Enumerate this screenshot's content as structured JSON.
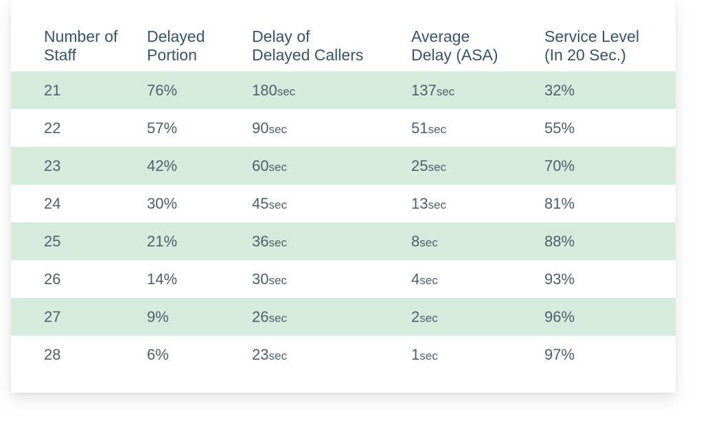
{
  "headers": [
    [
      "Number of",
      "Staff"
    ],
    [
      "Delayed",
      "Portion"
    ],
    [
      "Delay of",
      "Delayed Callers"
    ],
    [
      "Average",
      "Delay (ASA)"
    ],
    [
      "Service Level",
      "(In 20 Sec.)"
    ]
  ],
  "unit": "sec",
  "colors": {
    "header_text": "#36546e",
    "cell_text": "#4f5f6a",
    "row_shade": "#d3ecdc"
  },
  "chart_data": {
    "type": "table",
    "columns": [
      "Number of Staff",
      "Delayed Portion",
      "Delay of Delayed Callers",
      "Average Delay (ASA)",
      "Service Level (In 20 Sec.)"
    ],
    "rows": [
      [
        "21",
        "76%",
        "180",
        "137",
        "32%"
      ],
      [
        "22",
        "57%",
        "90",
        "51",
        "55%"
      ],
      [
        "23",
        "42%",
        "60",
        "25",
        "70%"
      ],
      [
        "24",
        "30%",
        "45",
        "13",
        "81%"
      ],
      [
        "25",
        "21%",
        "36",
        "8",
        "88%"
      ],
      [
        "26",
        "14%",
        "30",
        "4",
        "93%"
      ],
      [
        "27",
        "9%",
        "26",
        "2",
        "96%"
      ],
      [
        "28",
        "6%",
        "23",
        "1",
        "97%"
      ]
    ],
    "unit_columns": [
      2,
      3
    ]
  }
}
